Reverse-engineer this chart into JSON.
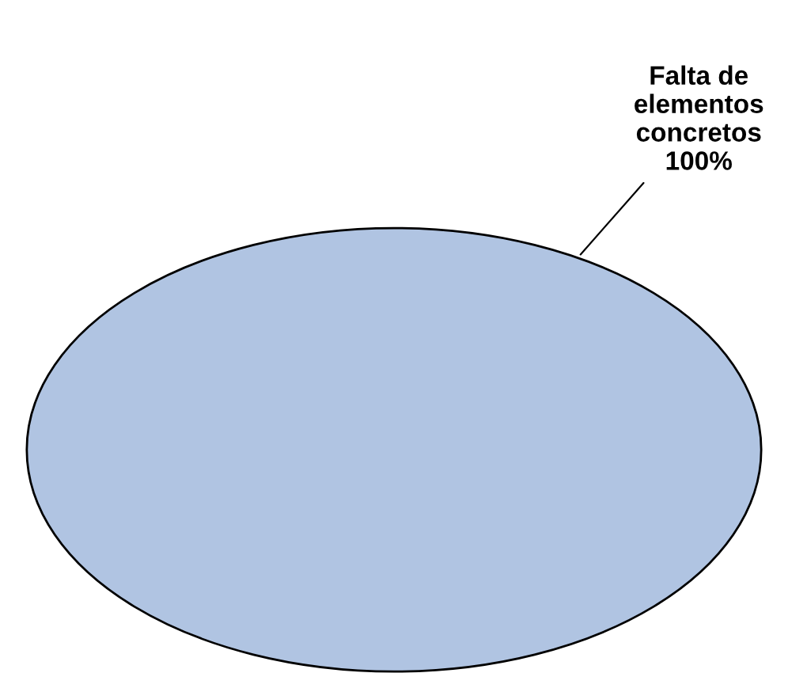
{
  "chart_data": {
    "type": "pie",
    "categories": [
      "Falta de elementos concretos"
    ],
    "values": [
      100
    ],
    "colors": [
      "#b0c4e2"
    ],
    "value_labels": [
      "100%"
    ],
    "legend": false
  }
}
